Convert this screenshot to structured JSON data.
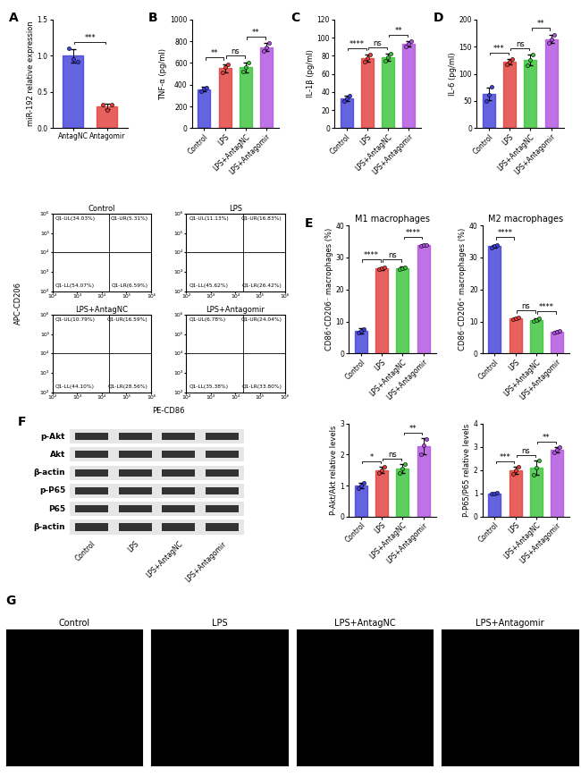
{
  "chart_data": [
    {
      "panel": "A",
      "type": "bar",
      "ylabel": "miR-192 relative expression",
      "categories": [
        "AntagNC",
        "Antagomir"
      ],
      "colors": [
        "#3d3dd9",
        "#e23b36"
      ],
      "values": [
        1.0,
        0.3
      ],
      "errors": [
        0.09,
        0.04
      ],
      "points": [
        [
          1.1,
          0.95,
          0.92
        ],
        [
          0.33,
          0.25,
          0.32
        ]
      ],
      "ylim": [
        0,
        1.5
      ],
      "yticks": [
        {
          "value": 0,
          "label": "0.0"
        },
        {
          "value": 0.5,
          "label": "0.5"
        },
        {
          "value": 1.0,
          "label": "1.0"
        },
        {
          "value": 1.5,
          "label": "1.5"
        }
      ],
      "comparisons": [
        {
          "pair": [
            0,
            1
          ],
          "label": "***"
        }
      ]
    },
    {
      "panel": "B",
      "type": "bar",
      "ylabel": "TNF-α (pg/ml)",
      "categories": [
        "Control",
        "LPS",
        "LPS+AntagNC",
        "LPS+Antagomir"
      ],
      "colors": [
        "#3d3dd9",
        "#e23b36",
        "#36c236",
        "#b04fe0"
      ],
      "values": [
        360,
        550,
        560,
        745
      ],
      "errors": [
        20,
        40,
        45,
        35
      ],
      "points": [
        [
          340,
          365,
          375
        ],
        [
          510,
          560,
          585
        ],
        [
          520,
          560,
          605
        ],
        [
          710,
          745,
          780
        ]
      ],
      "ylim": [
        0,
        1000
      ],
      "yticks": [
        0,
        200,
        400,
        600,
        800,
        1000
      ],
      "comparisons": [
        {
          "pair": [
            0,
            1
          ],
          "label": "**"
        },
        {
          "pair": [
            1,
            2
          ],
          "label": "ns"
        },
        {
          "pair": [
            2,
            3
          ],
          "label": "**"
        }
      ]
    },
    {
      "panel": "C",
      "type": "bar",
      "ylabel": "IL-1β (pg/ml)",
      "categories": [
        "Control",
        "LPS",
        "LPS+AntagNC",
        "LPS+Antagomir"
      ],
      "colors": [
        "#3d3dd9",
        "#e23b36",
        "#36c236",
        "#b04fe0"
      ],
      "values": [
        33,
        77,
        78,
        93
      ],
      "errors": [
        3,
        4,
        4,
        3
      ],
      "points": [
        [
          30,
          33,
          36
        ],
        [
          73,
          77,
          81
        ],
        [
          74,
          78,
          82
        ],
        [
          90,
          93,
          96
        ]
      ],
      "ylim": [
        0,
        120
      ],
      "yticks": [
        0,
        20,
        40,
        60,
        80,
        100,
        120
      ],
      "comparisons": [
        {
          "pair": [
            0,
            1
          ],
          "label": "****"
        },
        {
          "pair": [
            1,
            2
          ],
          "label": "ns"
        },
        {
          "pair": [
            2,
            3
          ],
          "label": "**"
        }
      ]
    },
    {
      "panel": "D",
      "type": "bar",
      "ylabel": "IL-6 (pg/ml)",
      "categories": [
        "Control",
        "LPS",
        "LPS+AntagNC",
        "LPS+Antagomir"
      ],
      "colors": [
        "#3d3dd9",
        "#e23b36",
        "#36c236",
        "#b04fe0"
      ],
      "values": [
        63,
        122,
        125,
        164
      ],
      "errors": [
        12,
        5,
        10,
        8
      ],
      "points": [
        [
          50,
          62,
          77
        ],
        [
          117,
          122,
          127
        ],
        [
          115,
          125,
          135
        ],
        [
          156,
          164,
          172
        ]
      ],
      "ylim": [
        0,
        200
      ],
      "yticks": [
        0,
        50,
        100,
        150,
        200
      ],
      "comparisons": [
        {
          "pair": [
            0,
            1
          ],
          "label": "***"
        },
        {
          "pair": [
            1,
            2
          ],
          "label": "ns"
        },
        {
          "pair": [
            2,
            3
          ],
          "label": "**"
        }
      ]
    },
    {
      "panel": "E",
      "type": "bar",
      "title": "M1 macrophages",
      "ylabel": "CD86⁺CD206⁻ macrophages (%)",
      "categories": [
        "Control",
        "LPS",
        "LPS+AntagNC",
        "LPS+Antagomir"
      ],
      "colors": [
        "#3d3dd9",
        "#e23b36",
        "#36c236",
        "#b04fe0"
      ],
      "values": [
        7,
        26.5,
        26.7,
        33.8
      ],
      "errors": [
        0.8,
        0.4,
        0.4,
        0.3
      ],
      "points": [
        [
          6.5,
          7.0,
          7.6
        ],
        [
          26.2,
          26.5,
          26.9
        ],
        [
          26.4,
          26.7,
          27.0
        ],
        [
          33.6,
          33.8,
          34.0
        ]
      ],
      "ylim": [
        0,
        40
      ],
      "yticks": [
        0,
        10,
        20,
        30,
        40
      ],
      "comparisons": [
        {
          "pair": [
            0,
            1
          ],
          "label": "****"
        },
        {
          "pair": [
            1,
            2
          ],
          "label": "ns"
        },
        {
          "pair": [
            2,
            3
          ],
          "label": "****"
        }
      ]
    },
    {
      "panel": "",
      "type": "bar",
      "title": "M2 macrophages",
      "ylabel": "CD86⁻CD206⁺ macrophages (%)",
      "categories": [
        "Control",
        "LPS",
        "LPS+AntagNC",
        "LPS+Antagomir"
      ],
      "colors": [
        "#3d3dd9",
        "#e23b36",
        "#36c236",
        "#b04fe0"
      ],
      "values": [
        33.5,
        11,
        10.5,
        6.8
      ],
      "errors": [
        0.5,
        0.2,
        0.4,
        0.2
      ],
      "points": [
        [
          33.0,
          33.5,
          34.0
        ],
        [
          10.8,
          11.0,
          11.2
        ],
        [
          10.1,
          10.5,
          10.9
        ],
        [
          6.6,
          6.8,
          7.0
        ]
      ],
      "ylim": [
        0,
        40
      ],
      "yticks": [
        0,
        10,
        20,
        30,
        40
      ],
      "comparisons": [
        {
          "pair": [
            0,
            1
          ],
          "label": "****"
        },
        {
          "pair": [
            1,
            2
          ],
          "label": "ns"
        },
        {
          "pair": [
            2,
            3
          ],
          "label": "****"
        }
      ]
    },
    {
      "panel": "",
      "type": "bar",
      "ylabel": "P-Akt/Akt relative levels",
      "categories": [
        "Control",
        "LPS",
        "LPS+AntagNC",
        "LPS+Antagomir"
      ],
      "colors": [
        "#3d3dd9",
        "#e23b36",
        "#36c236",
        "#b04fe0"
      ],
      "values": [
        1.0,
        1.5,
        1.55,
        2.27
      ],
      "errors": [
        0.08,
        0.1,
        0.15,
        0.25
      ],
      "points": [
        [
          0.92,
          1.0,
          1.08
        ],
        [
          1.4,
          1.5,
          1.6
        ],
        [
          1.4,
          1.55,
          1.7
        ],
        [
          2.0,
          2.3,
          2.5
        ]
      ],
      "ylim": [
        0,
        3
      ],
      "yticks": [
        0,
        1,
        2,
        3
      ],
      "comparisons": [
        {
          "pair": [
            0,
            1
          ],
          "label": "*"
        },
        {
          "pair": [
            1,
            2
          ],
          "label": "ns"
        },
        {
          "pair": [
            2,
            3
          ],
          "label": "**"
        }
      ]
    },
    {
      "panel": "",
      "type": "bar",
      "ylabel": "P-P65/P65 relative levels",
      "categories": [
        "Control",
        "LPS",
        "LPS+AntagNC",
        "LPS+Antagomir"
      ],
      "colors": [
        "#3d3dd9",
        "#e23b36",
        "#36c236",
        "#b04fe0"
      ],
      "values": [
        1.0,
        2.0,
        2.1,
        2.87
      ],
      "errors": [
        0.03,
        0.15,
        0.3,
        0.12
      ],
      "points": [
        [
          0.98,
          1.0,
          1.02
        ],
        [
          1.85,
          2.0,
          2.15
        ],
        [
          1.8,
          2.1,
          2.4
        ],
        [
          2.75,
          2.87,
          2.99
        ]
      ],
      "ylim": [
        0,
        4
      ],
      "yticks": [
        0,
        1,
        2,
        3,
        4
      ],
      "comparisons": [
        {
          "pair": [
            0,
            1
          ],
          "label": "***"
        },
        {
          "pair": [
            1,
            2
          ],
          "label": "ns"
        },
        {
          "pair": [
            2,
            3
          ],
          "label": "**"
        }
      ]
    },
    {
      "type": "scatter",
      "title": "Control",
      "log": true,
      "xlim": [
        100,
        1000000
      ],
      "ylim": [
        100,
        1000000
      ],
      "xticks": [
        {
          "value": 100,
          "label": "10²"
        },
        {
          "value": 1000,
          "label": "10³"
        },
        {
          "value": 10000,
          "label": "10⁴"
        },
        {
          "value": 100000,
          "label": "10⁵"
        },
        {
          "value": 1000000,
          "label": "10⁶"
        }
      ],
      "yticks": [
        {
          "value": 100,
          "label": "10²"
        },
        {
          "value": 1000,
          "label": "10³"
        },
        {
          "value": 10000,
          "label": "10⁴"
        },
        {
          "value": 100000,
          "label": "10⁵"
        },
        {
          "value": 1000000,
          "label": "10⁶"
        }
      ],
      "gate": {
        "x": 20000,
        "y": 10000
      },
      "quadrant_labels": {
        "UL": "Q1-UL(34.03%)",
        "UR": "Q1-UR(5.31%)",
        "LL": "Q1-LL(54.07%)",
        "LR": "Q1-LR(6.59%)"
      }
    },
    {
      "type": "scatter",
      "title": "LPS",
      "log": true,
      "xlim": [
        100,
        1000000
      ],
      "ylim": [
        100,
        1000000
      ],
      "xticks": [
        {
          "value": 100,
          "label": "10²"
        },
        {
          "value": 1000,
          "label": "10³"
        },
        {
          "value": 10000,
          "label": "10⁴"
        },
        {
          "value": 100000,
          "label": "10⁵"
        },
        {
          "value": 1000000,
          "label": "10⁶"
        }
      ],
      "yticks": [
        {
          "value": 100,
          "label": "10²"
        },
        {
          "value": 1000,
          "label": "10³"
        },
        {
          "value": 10000,
          "label": "10⁴"
        },
        {
          "value": 100000,
          "label": "10⁵"
        },
        {
          "value": 1000000,
          "label": "10⁶"
        }
      ],
      "gate": {
        "x": 20000,
        "y": 10000
      },
      "quadrant_labels": {
        "UL": "Q1-UL(11.13%)",
        "UR": "Q1-UR(16.83%)",
        "LL": "Q1-LL(45.62%)",
        "LR": "Q1-LR(26.42%)"
      }
    },
    {
      "type": "scatter",
      "title": "LPS+AntagNC",
      "log": true,
      "xlim": [
        100,
        1000000
      ],
      "ylim": [
        100,
        1000000
      ],
      "xticks": [
        {
          "value": 100,
          "label": "10²"
        },
        {
          "value": 1000,
          "label": "10³"
        },
        {
          "value": 10000,
          "label": "10⁴"
        },
        {
          "value": 100000,
          "label": "10⁵"
        },
        {
          "value": 1000000,
          "label": "10⁶"
        }
      ],
      "yticks": [
        {
          "value": 100,
          "label": "10²"
        },
        {
          "value": 1000,
          "label": "10³"
        },
        {
          "value": 10000,
          "label": "10⁴"
        },
        {
          "value": 100000,
          "label": "10⁵"
        },
        {
          "value": 1000000,
          "label": "10⁶"
        }
      ],
      "gate": {
        "x": 20000,
        "y": 10000
      },
      "quadrant_labels": {
        "UL": "Q1-UL(10.79%)",
        "UR": "Q1-UR(16.59%)",
        "LL": "Q1-LL(44.10%)",
        "LR": "Q1-LR(28.56%)"
      }
    },
    {
      "type": "scatter",
      "title": "LPS+Antagomir",
      "log": true,
      "xlim": [
        100,
        1000000
      ],
      "ylim": [
        100,
        1000000
      ],
      "xticks": [
        {
          "value": 100,
          "label": "10²"
        },
        {
          "value": 1000,
          "label": "10³"
        },
        {
          "value": 10000,
          "label": "10⁴"
        },
        {
          "value": 100000,
          "label": "10⁵"
        },
        {
          "value": 1000000,
          "label": "10⁶"
        }
      ],
      "yticks": [
        {
          "value": 100,
          "label": "10²"
        },
        {
          "value": 1000,
          "label": "10³"
        },
        {
          "value": 10000,
          "label": "10⁴"
        },
        {
          "value": 100000,
          "label": "10⁵"
        },
        {
          "value": 1000000,
          "label": "10⁶"
        }
      ],
      "gate": {
        "x": 20000,
        "y": 10000
      },
      "quadrant_labels": {
        "UL": "Q1-UL(6.78%)",
        "UR": "Q1-UR(24.04%)",
        "LL": "Q1-LL(35.38%)",
        "LR": "Q1-LR(33.80%)"
      }
    }
  ],
  "flow_axes": {
    "xlabel": "PE-CD86",
    "ylabel": "APC-CD206"
  },
  "blot": {
    "panel": "F",
    "rows": [
      "p-Akt",
      "Akt",
      "β-actin",
      "p-P65",
      "P65",
      "β-actin"
    ],
    "lanes": [
      "Control",
      "LPS",
      "LPS+AntagNC",
      "LPS+Antagomir"
    ]
  },
  "images": {
    "panel": "G",
    "titles": [
      "Control",
      "LPS",
      "LPS+AntagNC",
      "LPS+Antagomir"
    ]
  }
}
